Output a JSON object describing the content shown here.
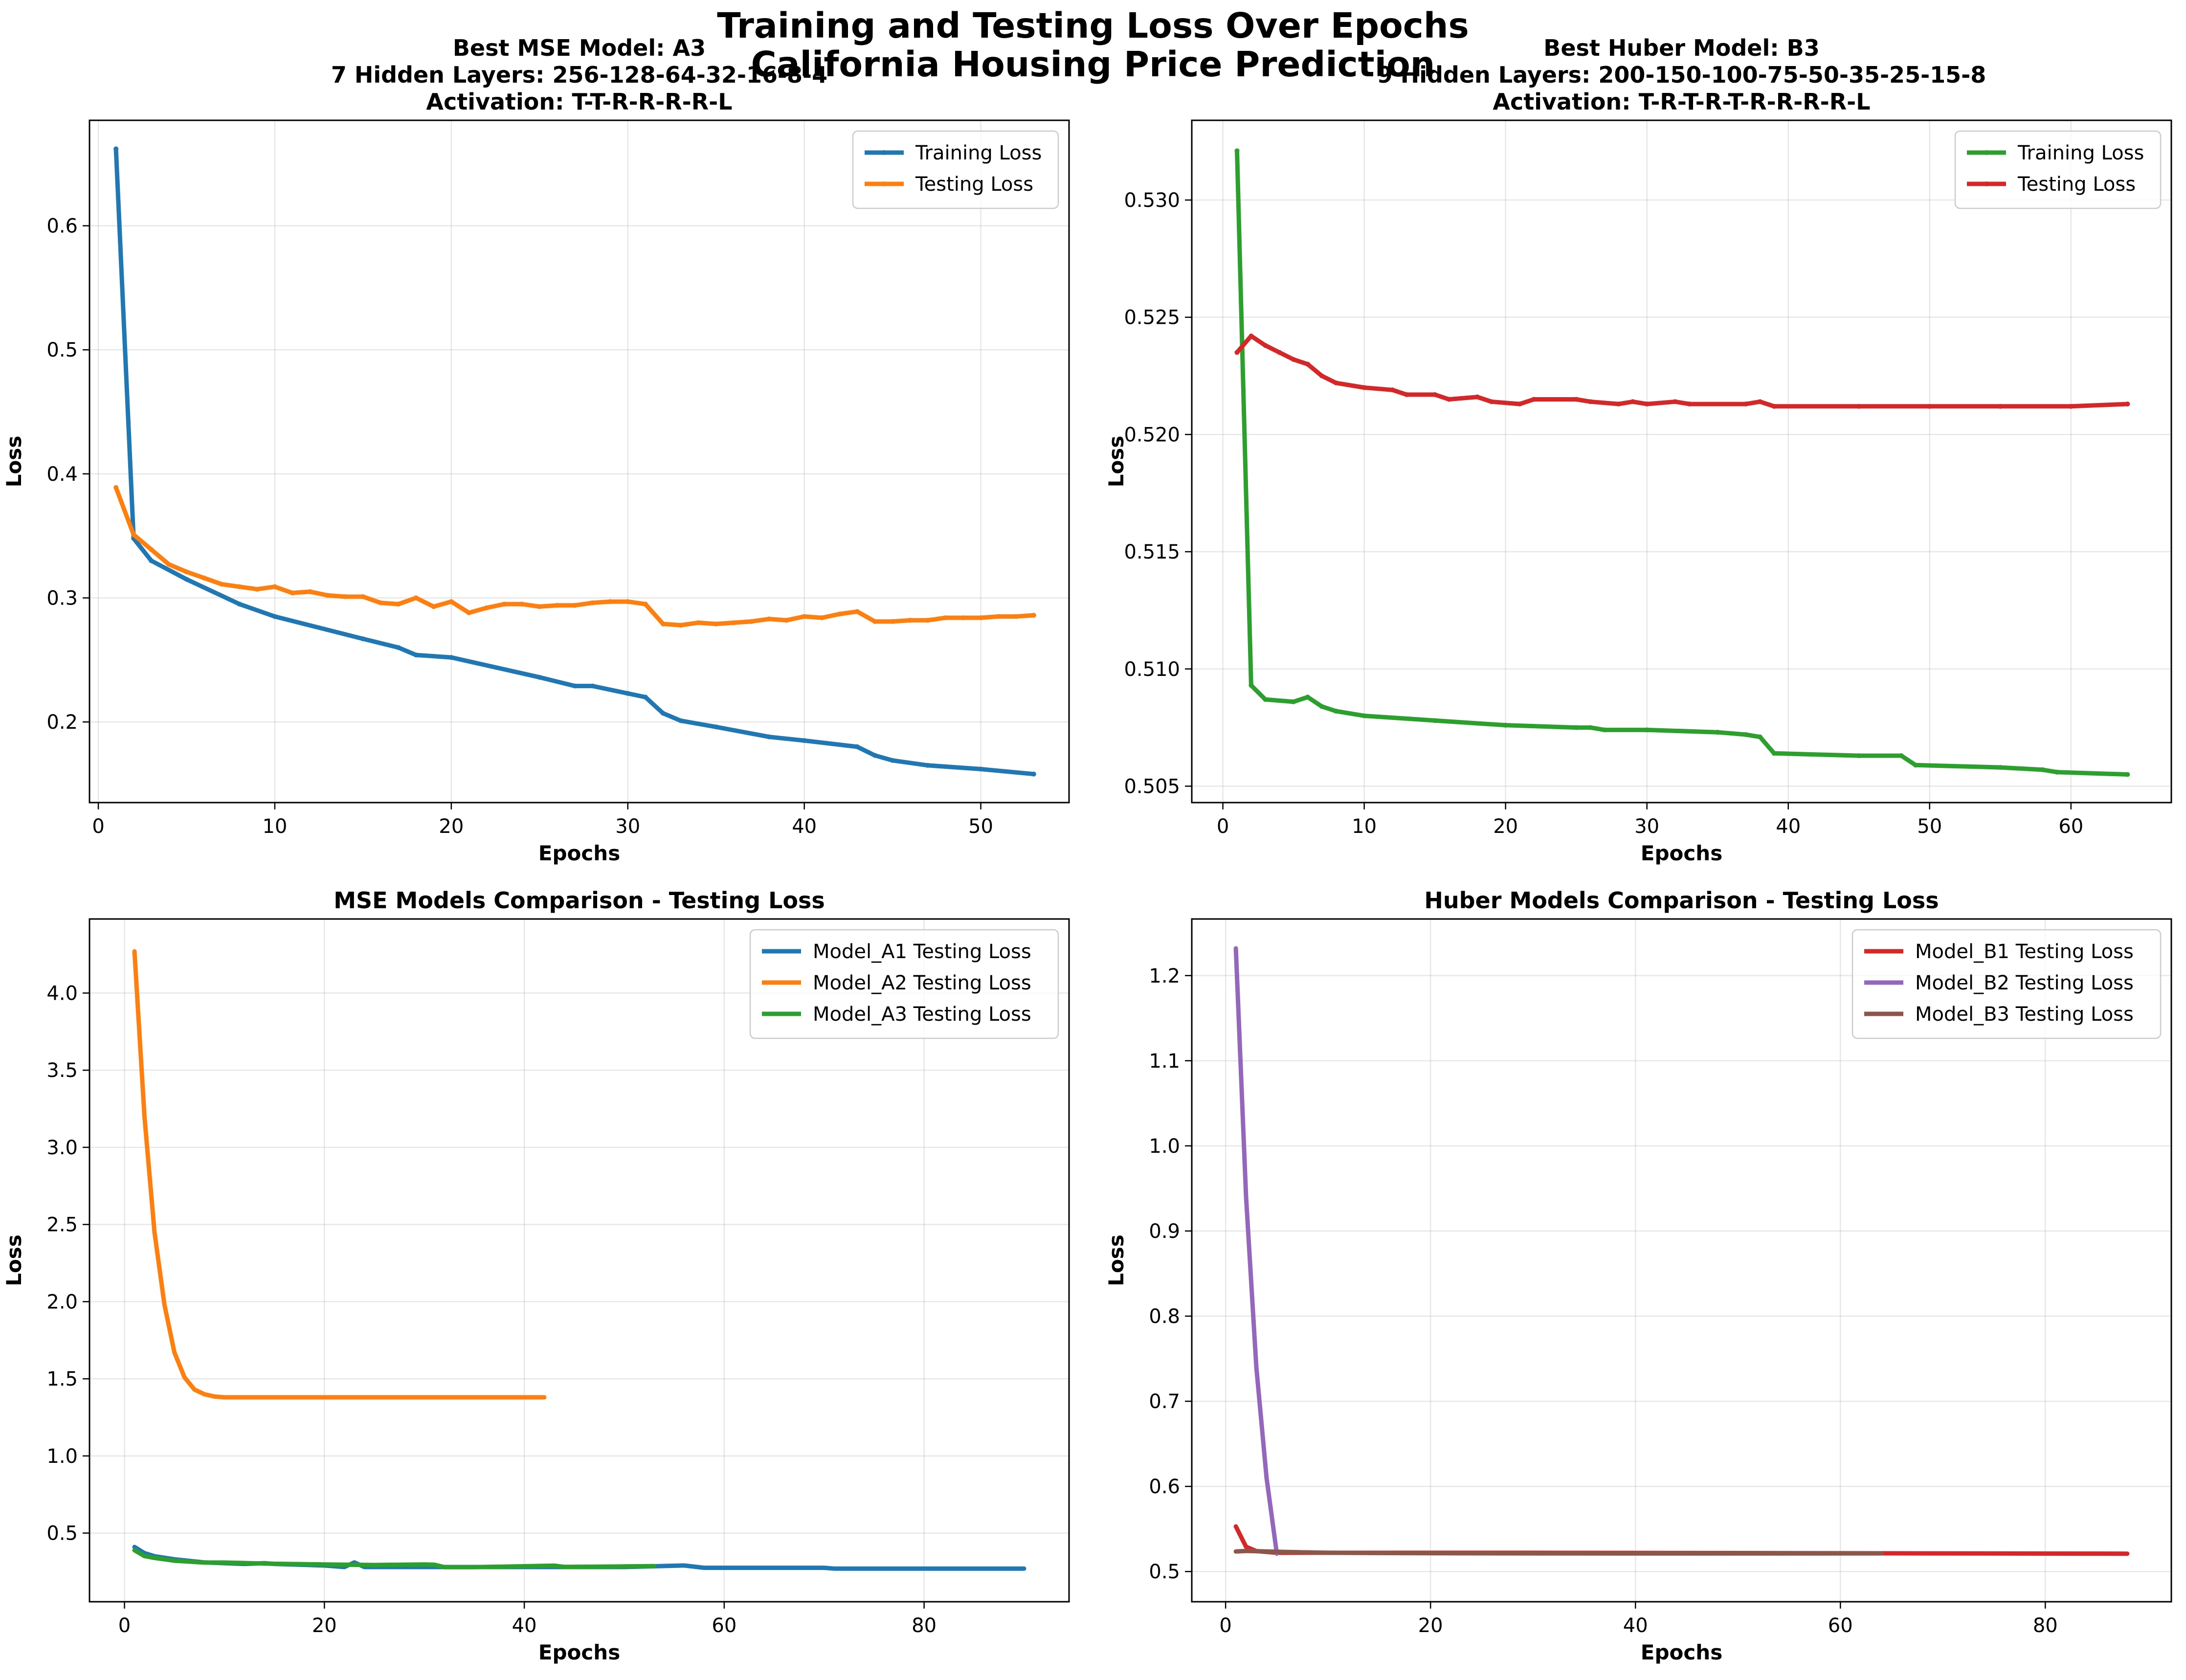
{
  "figure": {
    "title_line1": "Training and Testing Loss Over Epochs",
    "title_line2": "California Housing Price Prediction"
  },
  "chart_data": [
    {
      "type": "line",
      "title_lines": [
        "Best MSE Model: A3",
        "7 Hidden Layers: 256-128-64-32-16-8-4",
        "Activation: T-T-R-R-R-R-L"
      ],
      "xlabel": "Epochs",
      "ylabel": "Loss",
      "xlim": [
        -0.5,
        55
      ],
      "ylim": [
        0.135,
        0.685
      ],
      "xticks": [
        0,
        10,
        20,
        30,
        40,
        50
      ],
      "yticks": [
        0.2,
        0.3,
        0.4,
        0.5,
        0.6
      ],
      "ytick_labels": [
        "0.2",
        "0.3",
        "0.4",
        "0.5",
        "0.6"
      ],
      "grid": true,
      "legend": "upper-right",
      "series": [
        {
          "name": "Training Loss",
          "color": "#1f77b4",
          "markers": true,
          "points": [
            [
              1,
              0.662
            ],
            [
              2,
              0.348
            ],
            [
              3,
              0.33
            ],
            [
              5,
              0.315
            ],
            [
              8,
              0.295
            ],
            [
              10,
              0.285
            ],
            [
              15,
              0.267
            ],
            [
              17,
              0.26
            ],
            [
              18,
              0.254
            ],
            [
              20,
              0.252
            ],
            [
              25,
              0.236
            ],
            [
              27,
              0.229
            ],
            [
              28,
              0.229
            ],
            [
              30,
              0.223
            ],
            [
              31,
              0.22
            ],
            [
              32,
              0.207
            ],
            [
              33,
              0.201
            ],
            [
              35,
              0.196
            ],
            [
              38,
              0.188
            ],
            [
              40,
              0.185
            ],
            [
              43,
              0.18
            ],
            [
              44,
              0.173
            ],
            [
              45,
              0.169
            ],
            [
              47,
              0.165
            ],
            [
              50,
              0.162
            ],
            [
              53,
              0.158
            ]
          ]
        },
        {
          "name": "Testing Loss",
          "color": "#ff7f0e",
          "markers": true,
          "points": [
            [
              1,
              0.389
            ],
            [
              2,
              0.351
            ],
            [
              3,
              0.339
            ],
            [
              4,
              0.327
            ],
            [
              5,
              0.321
            ],
            [
              6,
              0.316
            ],
            [
              7,
              0.311
            ],
            [
              8,
              0.309
            ],
            [
              9,
              0.307
            ],
            [
              10,
              0.309
            ],
            [
              11,
              0.304
            ],
            [
              12,
              0.305
            ],
            [
              13,
              0.302
            ],
            [
              14,
              0.301
            ],
            [
              15,
              0.301
            ],
            [
              16,
              0.296
            ],
            [
              17,
              0.295
            ],
            [
              18,
              0.3
            ],
            [
              19,
              0.293
            ],
            [
              20,
              0.297
            ],
            [
              21,
              0.288
            ],
            [
              22,
              0.292
            ],
            [
              23,
              0.295
            ],
            [
              24,
              0.295
            ],
            [
              25,
              0.293
            ],
            [
              26,
              0.294
            ],
            [
              27,
              0.294
            ],
            [
              28,
              0.296
            ],
            [
              29,
              0.297
            ],
            [
              30,
              0.297
            ],
            [
              31,
              0.295
            ],
            [
              32,
              0.279
            ],
            [
              33,
              0.278
            ],
            [
              34,
              0.28
            ],
            [
              35,
              0.279
            ],
            [
              36,
              0.28
            ],
            [
              37,
              0.281
            ],
            [
              38,
              0.283
            ],
            [
              39,
              0.282
            ],
            [
              40,
              0.285
            ],
            [
              41,
              0.284
            ],
            [
              42,
              0.287
            ],
            [
              43,
              0.289
            ],
            [
              44,
              0.281
            ],
            [
              45,
              0.281
            ],
            [
              46,
              0.282
            ],
            [
              47,
              0.282
            ],
            [
              48,
              0.284
            ],
            [
              49,
              0.284
            ],
            [
              50,
              0.284
            ],
            [
              51,
              0.285
            ],
            [
              52,
              0.285
            ],
            [
              53,
              0.286
            ]
          ]
        }
      ]
    },
    {
      "type": "line",
      "title_lines": [
        "Best Huber Model: B3",
        "9 Hidden Layers: 200-150-100-75-50-35-25-15-8",
        "Activation: T-R-T-R-T-R-R-R-R-L"
      ],
      "xlabel": "Epochs",
      "ylabel": "Loss",
      "xlim": [
        -2.2,
        67.1
      ],
      "ylim": [
        0.5043,
        0.5334
      ],
      "xticks": [
        0,
        10,
        20,
        30,
        40,
        50,
        60
      ],
      "yticks": [
        0.505,
        0.51,
        0.515,
        0.52,
        0.525,
        0.53
      ],
      "ytick_labels": [
        "0.505",
        "0.510",
        "0.515",
        "0.520",
        "0.525",
        "0.530"
      ],
      "grid": true,
      "legend": "upper-right",
      "series": [
        {
          "name": "Training Loss",
          "color": "#2ca02c",
          "markers": true,
          "points": [
            [
              1,
              0.5321
            ],
            [
              2,
              0.5093
            ],
            [
              3,
              0.5087
            ],
            [
              5,
              0.5086
            ],
            [
              6,
              0.5088
            ],
            [
              7,
              0.5084
            ],
            [
              8,
              0.5082
            ],
            [
              10,
              0.508
            ],
            [
              15,
              0.5078
            ],
            [
              20,
              0.5076
            ],
            [
              25,
              0.5075
            ],
            [
              26,
              0.5075
            ],
            [
              27,
              0.5074
            ],
            [
              30,
              0.5074
            ],
            [
              35,
              0.5073
            ],
            [
              37,
              0.5072
            ],
            [
              38,
              0.5071
            ],
            [
              39,
              0.5064
            ],
            [
              45,
              0.5063
            ],
            [
              48,
              0.5063
            ],
            [
              49,
              0.5059
            ],
            [
              55,
              0.5058
            ],
            [
              58,
              0.5057
            ],
            [
              59,
              0.5056
            ],
            [
              64,
              0.5055
            ]
          ]
        },
        {
          "name": "Testing Loss",
          "color": "#d62728",
          "markers": true,
          "points": [
            [
              1,
              0.5235
            ],
            [
              2,
              0.5242
            ],
            [
              3,
              0.5238
            ],
            [
              4,
              0.5235
            ],
            [
              5,
              0.5232
            ],
            [
              6,
              0.523
            ],
            [
              7,
              0.5225
            ],
            [
              8,
              0.5222
            ],
            [
              10,
              0.522
            ],
            [
              12,
              0.5219
            ],
            [
              13,
              0.5217
            ],
            [
              15,
              0.5217
            ],
            [
              16,
              0.5215
            ],
            [
              18,
              0.5216
            ],
            [
              19,
              0.5214
            ],
            [
              21,
              0.5213
            ],
            [
              22,
              0.5215
            ],
            [
              25,
              0.5215
            ],
            [
              26,
              0.5214
            ],
            [
              28,
              0.5213
            ],
            [
              29,
              0.5214
            ],
            [
              30,
              0.5213
            ],
            [
              32,
              0.5214
            ],
            [
              33,
              0.5213
            ],
            [
              37,
              0.5213
            ],
            [
              38,
              0.5214
            ],
            [
              39,
              0.5212
            ],
            [
              45,
              0.5212
            ],
            [
              50,
              0.5212
            ],
            [
              55,
              0.5212
            ],
            [
              60,
              0.5212
            ],
            [
              64,
              0.5213
            ]
          ]
        }
      ]
    },
    {
      "type": "line",
      "title_lines": [
        "MSE Models Comparison - Testing Loss"
      ],
      "xlabel": "Epochs",
      "ylabel": "Loss",
      "xlim": [
        -3.5,
        94.5
      ],
      "ylim": [
        0.055,
        4.48
      ],
      "xticks": [
        0,
        20,
        40,
        60,
        80
      ],
      "yticks": [
        0.5,
        1.0,
        1.5,
        2.0,
        2.5,
        3.0,
        3.5,
        4.0
      ],
      "ytick_labels": [
        "0.5",
        "1.0",
        "1.5",
        "2.0",
        "2.5",
        "3.0",
        "3.5",
        "4.0"
      ],
      "grid": true,
      "legend": "upper-right",
      "series": [
        {
          "name": "Model_A1 Testing Loss",
          "color": "#1f77b4",
          "markers": false,
          "points": [
            [
              1,
              0.41
            ],
            [
              2,
              0.37
            ],
            [
              3,
              0.35
            ],
            [
              5,
              0.33
            ],
            [
              8,
              0.31
            ],
            [
              10,
              0.305
            ],
            [
              12,
              0.3
            ],
            [
              14,
              0.305
            ],
            [
              15,
              0.3
            ],
            [
              20,
              0.29
            ],
            [
              22,
              0.28
            ],
            [
              23,
              0.31
            ],
            [
              24,
              0.28
            ],
            [
              30,
              0.28
            ],
            [
              40,
              0.28
            ],
            [
              50,
              0.28
            ],
            [
              56,
              0.29
            ],
            [
              58,
              0.275
            ],
            [
              70,
              0.275
            ],
            [
              71,
              0.27
            ],
            [
              90,
              0.27
            ]
          ]
        },
        {
          "name": "Model_A2 Testing Loss",
          "color": "#ff7f0e",
          "markers": false,
          "points": [
            [
              1,
              4.27
            ],
            [
              2,
              3.2
            ],
            [
              3,
              2.45
            ],
            [
              4,
              1.98
            ],
            [
              5,
              1.67
            ],
            [
              6,
              1.51
            ],
            [
              7,
              1.43
            ],
            [
              8,
              1.4
            ],
            [
              9,
              1.385
            ],
            [
              10,
              1.38
            ],
            [
              15,
              1.38
            ],
            [
              42,
              1.38
            ]
          ]
        },
        {
          "name": "Model_A3 Testing Loss",
          "color": "#2ca02c",
          "markers": false,
          "points": [
            [
              1,
              0.389
            ],
            [
              2,
              0.351
            ],
            [
              3,
              0.339
            ],
            [
              5,
              0.321
            ],
            [
              8,
              0.309
            ],
            [
              10,
              0.309
            ],
            [
              15,
              0.301
            ],
            [
              20,
              0.297
            ],
            [
              25,
              0.293
            ],
            [
              30,
              0.297
            ],
            [
              31,
              0.295
            ],
            [
              32,
              0.279
            ],
            [
              35,
              0.279
            ],
            [
              40,
              0.285
            ],
            [
              43,
              0.289
            ],
            [
              44,
              0.281
            ],
            [
              50,
              0.284
            ],
            [
              53,
              0.286
            ]
          ]
        }
      ]
    },
    {
      "type": "line",
      "title_lines": [
        "Huber Models Comparison - Testing Loss"
      ],
      "xlabel": "Epochs",
      "ylabel": "Loss",
      "xlim": [
        -3.3,
        92.3
      ],
      "ylim": [
        0.4645,
        1.2665
      ],
      "xticks": [
        0,
        20,
        40,
        60,
        80
      ],
      "yticks": [
        0.5,
        0.6,
        0.7,
        0.8,
        0.9,
        1.0,
        1.1,
        1.2
      ],
      "ytick_labels": [
        "0.5",
        "0.6",
        "0.7",
        "0.8",
        "0.9",
        "1.0",
        "1.1",
        "1.2"
      ],
      "grid": true,
      "legend": "upper-right",
      "series": [
        {
          "name": "Model_B1 Testing Loss",
          "color": "#d62728",
          "markers": false,
          "points": [
            [
              1,
              0.553
            ],
            [
              2,
              0.529
            ],
            [
              3,
              0.524
            ],
            [
              5,
              0.522
            ],
            [
              10,
              0.522
            ],
            [
              30,
              0.522
            ],
            [
              88,
              0.521
            ]
          ]
        },
        {
          "name": "Model_B2 Testing Loss",
          "color": "#9467bd",
          "markers": false,
          "points": [
            [
              1,
              1.232
            ],
            [
              2,
              0.94
            ],
            [
              3,
              0.74
            ],
            [
              4,
              0.61
            ],
            [
              5,
              0.521
            ]
          ]
        },
        {
          "name": "Model_B3 Testing Loss",
          "color": "#8c564b",
          "markers": false,
          "points": [
            [
              1,
              0.5235
            ],
            [
              2,
              0.5242
            ],
            [
              5,
              0.5232
            ],
            [
              10,
              0.522
            ],
            [
              20,
              0.5215
            ],
            [
              30,
              0.5213
            ],
            [
              40,
              0.5212
            ],
            [
              50,
              0.5212
            ],
            [
              64,
              0.5213
            ]
          ]
        }
      ]
    }
  ]
}
